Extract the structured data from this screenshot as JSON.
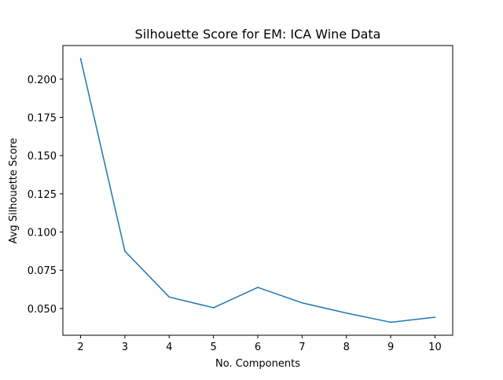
{
  "chart_data": {
    "type": "line",
    "title": "Silhouette Score for EM: ICA Wine Data",
    "xlabel": "No. Components",
    "ylabel": "Avg Silhouette Score",
    "x": [
      2,
      3,
      4,
      5,
      6,
      7,
      8,
      9,
      10
    ],
    "series": [
      {
        "values": [
          0.2135,
          0.0875,
          0.0575,
          0.0505,
          0.0638,
          0.0537,
          0.047,
          0.041,
          0.0443
        ],
        "color": "#1f77b4"
      }
    ],
    "xticks": [
      "2",
      "3",
      "4",
      "5",
      "6",
      "7",
      "8",
      "9",
      "10"
    ],
    "yticks": [
      "0.050",
      "0.075",
      "0.100",
      "0.125",
      "0.150",
      "0.175",
      "0.200"
    ],
    "xlim": [
      1.6,
      10.4
    ],
    "ylim": [
      0.0325,
      0.222
    ],
    "grid": false,
    "legend": "none"
  }
}
